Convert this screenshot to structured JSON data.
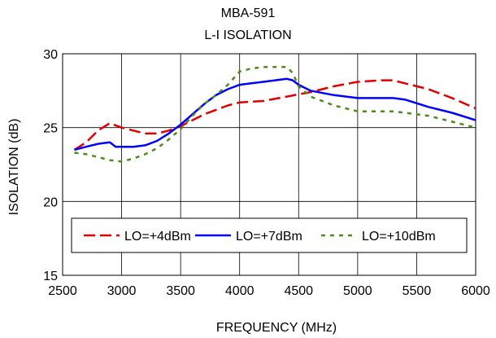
{
  "chart_data": {
    "type": "line",
    "title": "MBA-591",
    "subtitle": "L-I ISOLATION",
    "xlabel": "FREQUENCY (MHz)",
    "ylabel": "ISOLATION (dB)",
    "xlim": [
      2500,
      6000
    ],
    "ylim": [
      15,
      30
    ],
    "x_ticks": [
      2500,
      3000,
      3500,
      4000,
      4500,
      5000,
      5500,
      6000
    ],
    "y_ticks": [
      15,
      20,
      25,
      30
    ],
    "grid": true,
    "legend_position": "bottom-center",
    "series": [
      {
        "name": "LO=+4dBm",
        "color": "#e00000",
        "line_style": "long-dash",
        "points": [
          [
            2600,
            23.5
          ],
          [
            2700,
            24.0
          ],
          [
            2800,
            24.8
          ],
          [
            2900,
            25.3
          ],
          [
            3000,
            25.0
          ],
          [
            3100,
            24.8
          ],
          [
            3200,
            24.6
          ],
          [
            3300,
            24.6
          ],
          [
            3400,
            24.8
          ],
          [
            3500,
            25.1
          ],
          [
            3600,
            25.5
          ],
          [
            3700,
            25.9
          ],
          [
            3800,
            26.2
          ],
          [
            3900,
            26.5
          ],
          [
            4000,
            26.7
          ],
          [
            4200,
            26.8
          ],
          [
            4400,
            27.1
          ],
          [
            4600,
            27.4
          ],
          [
            4800,
            27.8
          ],
          [
            5000,
            28.1
          ],
          [
            5200,
            28.2
          ],
          [
            5300,
            28.2
          ],
          [
            5400,
            28.0
          ],
          [
            5600,
            27.6
          ],
          [
            5800,
            27.0
          ],
          [
            6000,
            26.3
          ]
        ]
      },
      {
        "name": "LO=+7dBm",
        "color": "#0000ff",
        "line_style": "solid",
        "points": [
          [
            2600,
            23.5
          ],
          [
            2700,
            23.7
          ],
          [
            2800,
            23.9
          ],
          [
            2900,
            24.0
          ],
          [
            2950,
            23.7
          ],
          [
            3000,
            23.7
          ],
          [
            3100,
            23.7
          ],
          [
            3200,
            23.8
          ],
          [
            3300,
            24.1
          ],
          [
            3400,
            24.6
          ],
          [
            3500,
            25.2
          ],
          [
            3600,
            25.9
          ],
          [
            3700,
            26.6
          ],
          [
            3800,
            27.2
          ],
          [
            3900,
            27.6
          ],
          [
            4000,
            27.9
          ],
          [
            4100,
            28.0
          ],
          [
            4200,
            28.1
          ],
          [
            4300,
            28.2
          ],
          [
            4400,
            28.3
          ],
          [
            4450,
            28.2
          ],
          [
            4500,
            27.9
          ],
          [
            4600,
            27.5
          ],
          [
            4800,
            27.2
          ],
          [
            5000,
            27.0
          ],
          [
            5200,
            27.0
          ],
          [
            5300,
            27.0
          ],
          [
            5400,
            26.9
          ],
          [
            5600,
            26.4
          ],
          [
            5800,
            26.0
          ],
          [
            6000,
            25.5
          ]
        ]
      },
      {
        "name": "LO=+10dBm",
        "color": "#4d8c1a",
        "line_style": "short-dash",
        "points": [
          [
            2600,
            23.3
          ],
          [
            2700,
            23.2
          ],
          [
            2800,
            23.0
          ],
          [
            2900,
            22.8
          ],
          [
            3000,
            22.7
          ],
          [
            3100,
            22.9
          ],
          [
            3200,
            23.2
          ],
          [
            3300,
            23.6
          ],
          [
            3400,
            24.2
          ],
          [
            3500,
            24.9
          ],
          [
            3600,
            25.8
          ],
          [
            3700,
            26.6
          ],
          [
            3800,
            27.2
          ],
          [
            3900,
            27.9
          ],
          [
            4000,
            28.8
          ],
          [
            4100,
            29.0
          ],
          [
            4200,
            29.1
          ],
          [
            4300,
            29.1
          ],
          [
            4400,
            29.1
          ],
          [
            4450,
            28.7
          ],
          [
            4500,
            27.8
          ],
          [
            4600,
            27.1
          ],
          [
            4800,
            26.5
          ],
          [
            5000,
            26.1
          ],
          [
            5200,
            26.1
          ],
          [
            5300,
            26.1
          ],
          [
            5400,
            26.0
          ],
          [
            5600,
            25.8
          ],
          [
            5800,
            25.4
          ],
          [
            6000,
            25.0
          ]
        ]
      }
    ]
  }
}
